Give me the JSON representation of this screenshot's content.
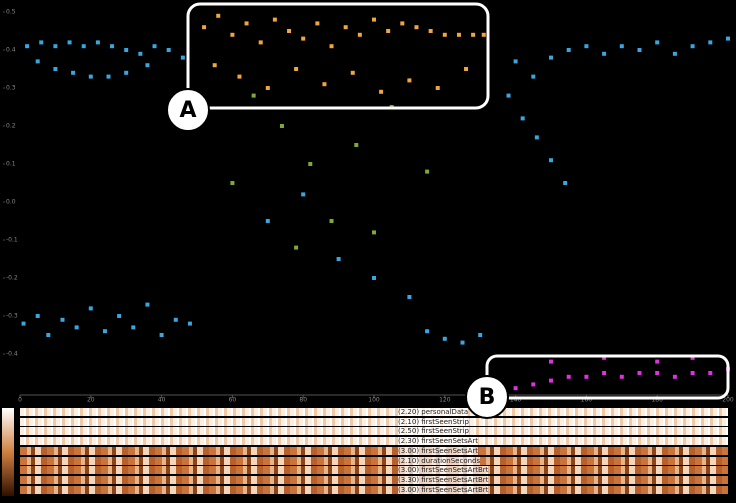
{
  "chart_data": {
    "type": "scatter",
    "xlim": [
      0,
      200
    ],
    "xticks": [
      0,
      20,
      40,
      60,
      80,
      100,
      120,
      140,
      160,
      180,
      200
    ],
    "ylim": [
      -0.5,
      0.5
    ],
    "yticks": [
      0.5,
      0.4,
      0.3,
      0.2,
      0.1,
      {
        "value": 0,
        "label": "0.0"
      },
      -0.1,
      -0.2,
      -0.3,
      -0.4
    ],
    "annotations": [
      "A",
      "B"
    ],
    "series": [
      {
        "color": "#3aa6e0",
        "x": [
          2,
          6,
          10,
          14,
          18,
          22,
          26,
          30,
          34,
          38,
          42,
          46,
          5,
          10,
          15,
          20,
          25,
          30,
          36,
          1,
          5,
          8,
          12,
          16,
          20,
          24,
          28,
          32,
          36,
          40,
          44,
          48,
          140,
          145,
          150,
          155,
          160,
          165,
          170,
          175,
          180,
          185,
          190,
          195,
          200,
          138,
          142,
          146,
          150,
          154,
          115,
          120,
          125,
          130,
          70,
          90,
          100,
          80,
          110
        ],
        "y": [
          0.41,
          0.42,
          0.41,
          0.42,
          0.41,
          0.42,
          0.41,
          0.4,
          0.39,
          0.41,
          0.4,
          0.38,
          0.37,
          0.35,
          0.34,
          0.33,
          0.33,
          0.34,
          0.36,
          -0.32,
          -0.3,
          -0.35,
          -0.31,
          -0.33,
          -0.28,
          -0.34,
          -0.3,
          -0.33,
          -0.27,
          -0.35,
          -0.31,
          -0.32,
          0.37,
          0.33,
          0.38,
          0.4,
          0.41,
          0.39,
          0.41,
          0.4,
          0.42,
          0.39,
          0.41,
          0.42,
          0.43,
          0.28,
          0.22,
          0.17,
          0.11,
          0.05,
          -0.34,
          -0.36,
          -0.37,
          -0.35,
          -0.05,
          -0.15,
          -0.2,
          0.02,
          -0.25
        ]
      },
      {
        "color": "#f0a640",
        "x": [
          52,
          56,
          60,
          64,
          68,
          72,
          76,
          80,
          84,
          88,
          92,
          96,
          100,
          104,
          108,
          112,
          116,
          120,
          124,
          128,
          131,
          55,
          62,
          70,
          78,
          86,
          94,
          102,
          110,
          118,
          126
        ],
        "y": [
          0.46,
          0.49,
          0.44,
          0.47,
          0.42,
          0.48,
          0.45,
          0.43,
          0.47,
          0.41,
          0.46,
          0.44,
          0.48,
          0.45,
          0.47,
          0.46,
          0.45,
          0.44,
          0.44,
          0.44,
          0.44,
          0.36,
          0.33,
          0.3,
          0.35,
          0.31,
          0.34,
          0.29,
          0.32,
          0.3,
          0.35
        ]
      },
      {
        "color": "#7fa83a",
        "x": [
          66,
          74,
          82,
          60,
          95,
          105,
          115,
          88,
          78,
          100
        ],
        "y": [
          0.28,
          0.2,
          0.1,
          0.05,
          0.15,
          0.25,
          0.08,
          -0.05,
          -0.12,
          -0.08
        ]
      },
      {
        "color": "#e030e0",
        "x": [
          140,
          145,
          150,
          155,
          160,
          165,
          170,
          175,
          180,
          185,
          190,
          195,
          200,
          150,
          165,
          180,
          190
        ],
        "y": [
          -0.49,
          -0.48,
          -0.47,
          -0.46,
          -0.46,
          -0.45,
          -0.46,
          -0.45,
          -0.45,
          -0.46,
          -0.45,
          -0.45,
          -0.44,
          -0.42,
          -0.41,
          -0.42,
          -0.41
        ]
      }
    ]
  },
  "heatmap": {
    "rows": [
      "(2.20) personalData",
      "(2.10) firstSeenStrip",
      "(2.50) firstSeenStrip",
      "(2.30) firstSeenSetsArt",
      "(3.00) firstSeenSetsArt",
      "(2.10) durationSeconds",
      "(3.00) firstSeenSetsArtBrt",
      "(3.30) firstSeenSetsArtBrt",
      "(3.00) firstSeenSetsArtBrt"
    ]
  }
}
